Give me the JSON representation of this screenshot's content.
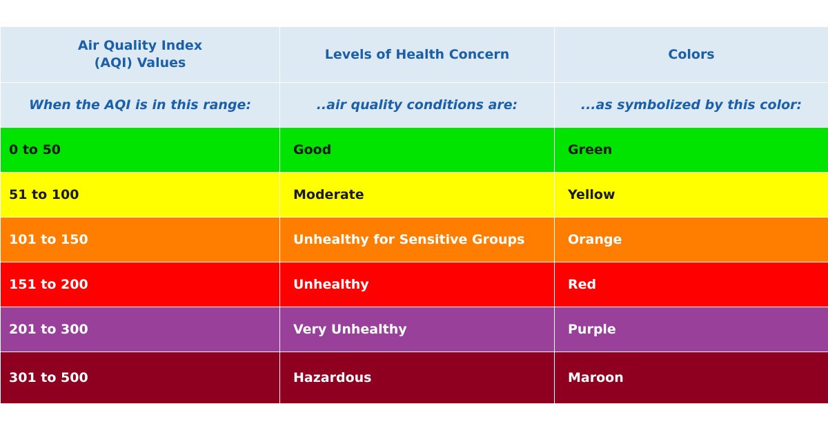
{
  "header": {
    "col1": [
      "Air Quality Index",
      "(AQI) Values"
    ],
    "col2": "Levels of Health Concern",
    "col3": "Colors"
  },
  "subheader": {
    "col1": "When the AQI is in this range:",
    "col2": "..air quality conditions are:",
    "col3": "...as symbolized by this color:"
  },
  "rows": [
    {
      "range": "0 to 50",
      "level": "Good",
      "color_name": "Green",
      "bg": "#00e400",
      "fg": "#1a1a1a"
    },
    {
      "range": "51 to 100",
      "level": "Moderate",
      "color_name": "Yellow",
      "bg": "#ffff00",
      "fg": "#1a1a1a"
    },
    {
      "range": "101 to 150",
      "level": "Unhealthy for Sensitive Groups",
      "color_name": "Orange",
      "bg": "#ff7e00",
      "fg": "#ffffff"
    },
    {
      "range": "151 to 200",
      "level": "Unhealthy",
      "color_name": "Red",
      "bg": "#ff0000",
      "fg": "#ffffff"
    },
    {
      "range": "201 to 300",
      "level": "Very Unhealthy",
      "color_name": "Purple",
      "bg": "#99409a",
      "fg": "#ffffff"
    },
    {
      "range": "301 to 500",
      "level": "Hazardous",
      "color_name": "Maroon",
      "bg": "#8f0020",
      "fg": "#ffffff"
    }
  ]
}
